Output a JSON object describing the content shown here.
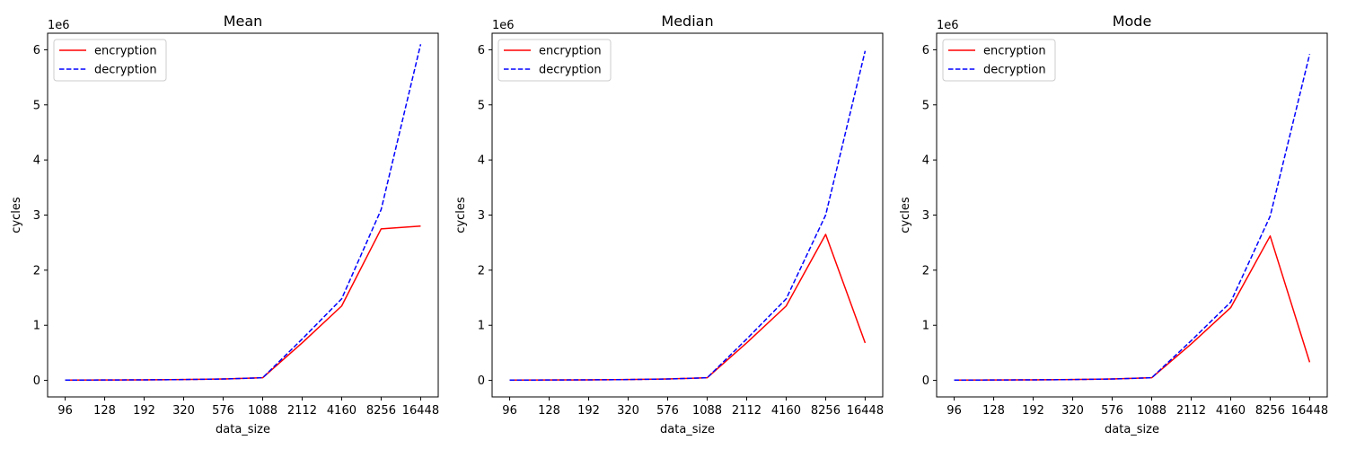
{
  "chart_data": [
    {
      "type": "line",
      "title": "Mean",
      "xlabel": "data_size",
      "ylabel": "cycles",
      "offset_text": "1e6",
      "categories": [
        "96",
        "128",
        "192",
        "320",
        "576",
        "1088",
        "2112",
        "4160",
        "8256",
        "16448"
      ],
      "yticks": [
        "0",
        "1",
        "2",
        "3",
        "4",
        "5",
        "6"
      ],
      "ylim": [
        -0.3,
        6.3
      ],
      "legend_position": "upper-left",
      "series": [
        {
          "name": "encryption",
          "color": "#ff0000",
          "style": "solid",
          "values": [
            0.005,
            0.007,
            0.01,
            0.015,
            0.025,
            0.048,
            0.68,
            1.35,
            2.75,
            2.8
          ]
        },
        {
          "name": "decryption",
          "color": "#0000ff",
          "style": "dashed",
          "values": [
            0.005,
            0.007,
            0.01,
            0.015,
            0.025,
            0.048,
            0.75,
            1.48,
            3.1,
            6.1
          ]
        }
      ]
    },
    {
      "type": "line",
      "title": "Median",
      "xlabel": "data_size",
      "ylabel": "cycles",
      "offset_text": "1e6",
      "categories": [
        "96",
        "128",
        "192",
        "320",
        "576",
        "1088",
        "2112",
        "4160",
        "8256",
        "16448"
      ],
      "yticks": [
        "0",
        "1",
        "2",
        "3",
        "4",
        "5",
        "6"
      ],
      "ylim": [
        -0.3,
        6.3
      ],
      "legend_position": "upper-left",
      "series": [
        {
          "name": "encryption",
          "color": "#ff0000",
          "style": "solid",
          "values": [
            0.005,
            0.007,
            0.01,
            0.015,
            0.025,
            0.048,
            0.68,
            1.35,
            2.65,
            0.68
          ]
        },
        {
          "name": "decryption",
          "color": "#0000ff",
          "style": "dashed",
          "values": [
            0.005,
            0.007,
            0.01,
            0.015,
            0.025,
            0.048,
            0.75,
            1.48,
            3.0,
            5.98
          ]
        }
      ]
    },
    {
      "type": "line",
      "title": "Mode",
      "xlabel": "data_size",
      "ylabel": "cycles",
      "offset_text": "1e6",
      "categories": [
        "96",
        "128",
        "192",
        "320",
        "576",
        "1088",
        "2112",
        "4160",
        "8256",
        "16448"
      ],
      "yticks": [
        "0",
        "1",
        "2",
        "3",
        "4",
        "5",
        "6"
      ],
      "ylim": [
        -0.3,
        6.3
      ],
      "legend_position": "upper-left",
      "series": [
        {
          "name": "encryption",
          "color": "#ff0000",
          "style": "solid",
          "values": [
            0.005,
            0.007,
            0.01,
            0.015,
            0.025,
            0.048,
            0.66,
            1.32,
            2.62,
            0.33
          ]
        },
        {
          "name": "decryption",
          "color": "#0000ff",
          "style": "dashed",
          "values": [
            0.005,
            0.007,
            0.01,
            0.015,
            0.025,
            0.048,
            0.72,
            1.42,
            2.98,
            5.92
          ]
        }
      ]
    }
  ]
}
